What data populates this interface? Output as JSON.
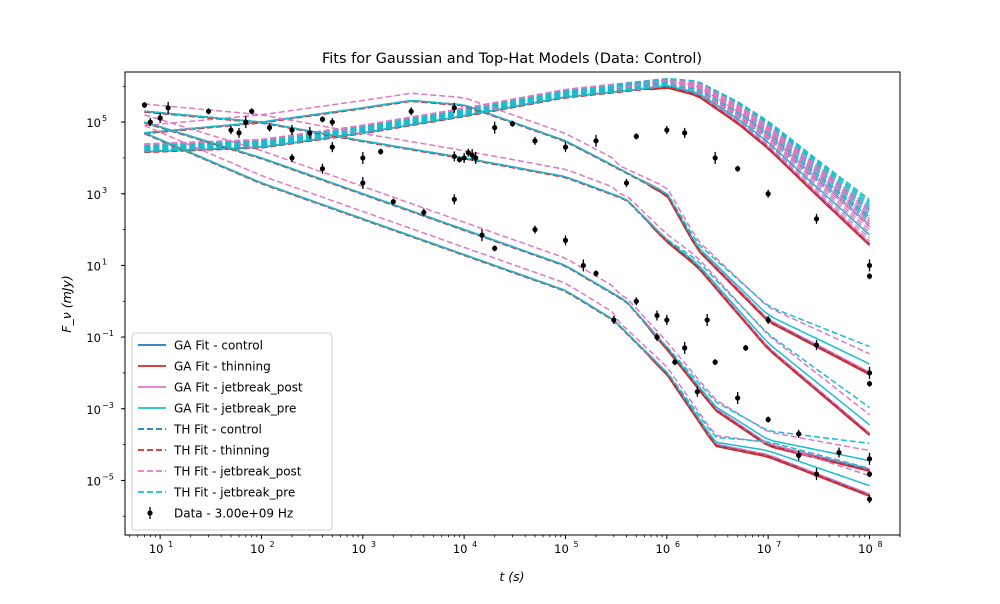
{
  "chart_data": {
    "type": "line",
    "title": "Fits for Gaussian and Top-Hat Models (Data: Control)",
    "xlabel": "t (s)",
    "ylabel": "F_ν (mJy)",
    "xscale": "log",
    "yscale": "log",
    "xlim": [
      4.5,
      200000000.0
    ],
    "ylim": [
      3e-07,
      2500000.0
    ],
    "grid": false,
    "legend_position": "lower-left",
    "x_tick_labels": [
      "10",
      "10",
      "10",
      "10",
      "10",
      "10",
      "10",
      "10"
    ],
    "x_tick_exponents": [
      "1",
      "2",
      "3",
      "4",
      "5",
      "6",
      "7",
      "8"
    ],
    "y_tick_labels": [
      "10",
      "10",
      "10",
      "10",
      "10",
      "10"
    ],
    "y_tick_exponents": [
      "−5",
      "−3",
      "−1",
      "1",
      "3",
      "5"
    ],
    "series": [
      {
        "name": "GA Fit - control",
        "style": "solid",
        "color": "#1f77b4"
      },
      {
        "name": "GA Fit - thinning",
        "style": "solid",
        "color": "#d62728"
      },
      {
        "name": "GA Fit - jetbreak_post",
        "style": "solid",
        "color": "#e377c2"
      },
      {
        "name": "GA Fit - jetbreak_pre",
        "style": "solid",
        "color": "#17becf"
      },
      {
        "name": "TH Fit - control",
        "style": "dashed",
        "color": "#1f77b4"
      },
      {
        "name": "TH Fit - thinning",
        "style": "dashed",
        "color": "#d62728"
      },
      {
        "name": "TH Fit - jetbreak_post",
        "style": "dashed",
        "color": "#e377c2"
      },
      {
        "name": "TH Fit - jetbreak_pre",
        "style": "dashed",
        "color": "#17becf"
      },
      {
        "name": "Data - 3.00e+09 Hz",
        "style": "errorbar",
        "color": "#000000"
      }
    ],
    "model_curves": [
      {
        "family": "A",
        "model": "GA",
        "variant": "control",
        "points": [
          [
            7,
            15000.0
          ],
          [
            100,
            20000.0
          ],
          [
            1000,
            50000.0
          ],
          [
            10000.0,
            150000.0
          ],
          [
            100000.0,
            500000.0
          ],
          [
            1000000.0,
            1000000.0
          ],
          [
            2000000.0,
            600000.0
          ],
          [
            5000000.0,
            100000.0
          ],
          [
            10000000.0,
            20000.0
          ],
          [
            30000000.0,
            1000.0
          ],
          [
            100000000.0,
            40
          ]
        ]
      },
      {
        "family": "B",
        "model": "GA",
        "variant": "control",
        "points": [
          [
            7,
            50000.0
          ],
          [
            100,
            100000.0
          ],
          [
            1000,
            250000.0
          ],
          [
            3000,
            400000.0
          ],
          [
            10000.0,
            300000.0
          ],
          [
            30000.0,
            100000.0
          ],
          [
            100000.0,
            30000.0
          ],
          [
            300000.0,
            6000.0
          ],
          [
            1000000.0,
            1000.0
          ],
          [
            2000000.0,
            30
          ],
          [
            10000000.0,
            0.3
          ],
          [
            100000000.0,
            0.01
          ]
        ]
      },
      {
        "family": "C",
        "model": "GA",
        "variant": "control",
        "points": [
          [
            7,
            200000.0
          ],
          [
            100,
            100000.0
          ],
          [
            1000,
            30000.0
          ],
          [
            10000.0,
            10000.0
          ],
          [
            100000.0,
            3000.0
          ],
          [
            400000.0,
            700
          ],
          [
            1000000.0,
            50
          ],
          [
            2000000.0,
            10
          ],
          [
            10000000.0,
            0.05
          ],
          [
            100000000.0,
            0.0002
          ]
        ]
      },
      {
        "family": "D",
        "model": "GA",
        "variant": "control",
        "points": [
          [
            7,
            100000.0
          ],
          [
            100,
            10000.0
          ],
          [
            1000,
            1000.0
          ],
          [
            10000.0,
            100
          ],
          [
            100000.0,
            10
          ],
          [
            400000.0,
            1
          ],
          [
            1000000.0,
            0.05
          ],
          [
            3000000.0,
            0.001
          ],
          [
            10000000.0,
            0.0001
          ],
          [
            100000000.0,
            2e-05
          ]
        ]
      },
      {
        "family": "E",
        "model": "GA",
        "variant": "control",
        "points": [
          [
            7,
            50000.0
          ],
          [
            100,
            2000.0
          ],
          [
            1000,
            200
          ],
          [
            10000.0,
            20
          ],
          [
            100000.0,
            2
          ],
          [
            300000.0,
            0.3
          ],
          [
            1000000.0,
            0.01
          ],
          [
            3000000.0,
            0.0001
          ],
          [
            10000000.0,
            5e-05
          ],
          [
            100000000.0,
            4e-06
          ]
        ]
      }
    ],
    "data_points": [
      {
        "t": 7,
        "f": 300000.0
      },
      {
        "t": 8,
        "f": 100000.0
      },
      {
        "t": 10,
        "f": 130000.0
      },
      {
        "t": 12,
        "f": 250000.0
      },
      {
        "t": 30,
        "f": 200000.0
      },
      {
        "t": 50,
        "f": 60000.0
      },
      {
        "t": 60,
        "f": 50000.0
      },
      {
        "t": 70,
        "f": 100000.0
      },
      {
        "t": 80,
        "f": 200000.0
      },
      {
        "t": 120,
        "f": 70000.0
      },
      {
        "t": 200,
        "f": 60000.0
      },
      {
        "t": 300,
        "f": 50000.0
      },
      {
        "t": 400,
        "f": 120000.0
      },
      {
        "t": 500,
        "f": 100000.0
      },
      {
        "t": 500,
        "f": 20000.0
      },
      {
        "t": 1000,
        "f": 10000.0
      },
      {
        "t": 1500,
        "f": 15000.0
      },
      {
        "t": 3000,
        "f": 200000.0
      },
      {
        "t": 8000,
        "f": 250000.0
      },
      {
        "t": 20000.0,
        "f": 70000.0
      },
      {
        "t": 30000.0,
        "f": 90000.0
      },
      {
        "t": 50000.0,
        "f": 30000.0
      },
      {
        "t": 100000.0,
        "f": 20000.0
      },
      {
        "t": 200000.0,
        "f": 30000.0
      },
      {
        "t": 500000.0,
        "f": 40000.0
      },
      {
        "t": 1000000.0,
        "f": 60000.0
      },
      {
        "t": 1500000.0,
        "f": 50000.0
      },
      {
        "t": 3000000.0,
        "f": 10000.0
      },
      {
        "t": 5000000.0,
        "f": 5000.0
      },
      {
        "t": 10000000.0,
        "f": 1000.0
      },
      {
        "t": 30000000.0,
        "f": 200
      },
      {
        "t": 100000000.0,
        "f": 10
      },
      {
        "t": 100000000.0,
        "f": 5
      },
      {
        "t": 200,
        "f": 10000.0
      },
      {
        "t": 400,
        "f": 5000.0
      },
      {
        "t": 1000,
        "f": 2000.0
      },
      {
        "t": 2000,
        "f": 600
      },
      {
        "t": 4000,
        "f": 300
      },
      {
        "t": 8000,
        "f": 700
      },
      {
        "t": 15000.0,
        "f": 70
      },
      {
        "t": 20000.0,
        "f": 30
      },
      {
        "t": 50000.0,
        "f": 100
      },
      {
        "t": 100000.0,
        "f": 50
      },
      {
        "t": 150000.0,
        "f": 10
      },
      {
        "t": 200000.0,
        "f": 6
      },
      {
        "t": 400000.0,
        "f": 2000.0
      },
      {
        "t": 1000000.0,
        "f": 0.3
      },
      {
        "t": 1500000.0,
        "f": 0.05
      },
      {
        "t": 3000000.0,
        "f": 0.02
      },
      {
        "t": 10000000.0,
        "f": 0.3
      },
      {
        "t": 30000000.0,
        "f": 0.06
      },
      {
        "t": 100000000.0,
        "f": 0.01
      },
      {
        "t": 100000000.0,
        "f": 0.005
      },
      {
        "t": 500000.0,
        "f": 1
      },
      {
        "t": 2000000.0,
        "f": 0.003
      },
      {
        "t": 5000000.0,
        "f": 0.002
      },
      {
        "t": 10000000.0,
        "f": 0.0005
      },
      {
        "t": 20000000.0,
        "f": 0.0002
      },
      {
        "t": 50000000.0,
        "f": 6e-05
      },
      {
        "t": 100000000.0,
        "f": 4e-05
      },
      {
        "t": 100000000.0,
        "f": 1.5e-05
      },
      {
        "t": 100000000.0,
        "f": 3e-06
      },
      {
        "t": 20000000.0,
        "f": 5e-05
      },
      {
        "t": 30000000.0,
        "f": 1.5e-05
      },
      {
        "t": 1200000.0,
        "f": 0.02
      },
      {
        "t": 300000.0,
        "f": 0.3
      },
      {
        "t": 800000.0,
        "f": 0.4
      },
      {
        "t": 2500000.0,
        "f": 0.3
      },
      {
        "t": 6000000.0,
        "f": 0.05
      },
      {
        "t": 800000.0,
        "f": 0.1
      },
      {
        "t": 10000.0,
        "f": 10000.0
      },
      {
        "t": 12000.0,
        "f": 12000.0
      },
      {
        "t": 9000.0,
        "f": 9000.0
      },
      {
        "t": 11000.0,
        "f": 14000.0
      },
      {
        "t": 8000.0,
        "f": 11000.0
      },
      {
        "t": 13000.0,
        "f": 10000.0
      }
    ]
  }
}
